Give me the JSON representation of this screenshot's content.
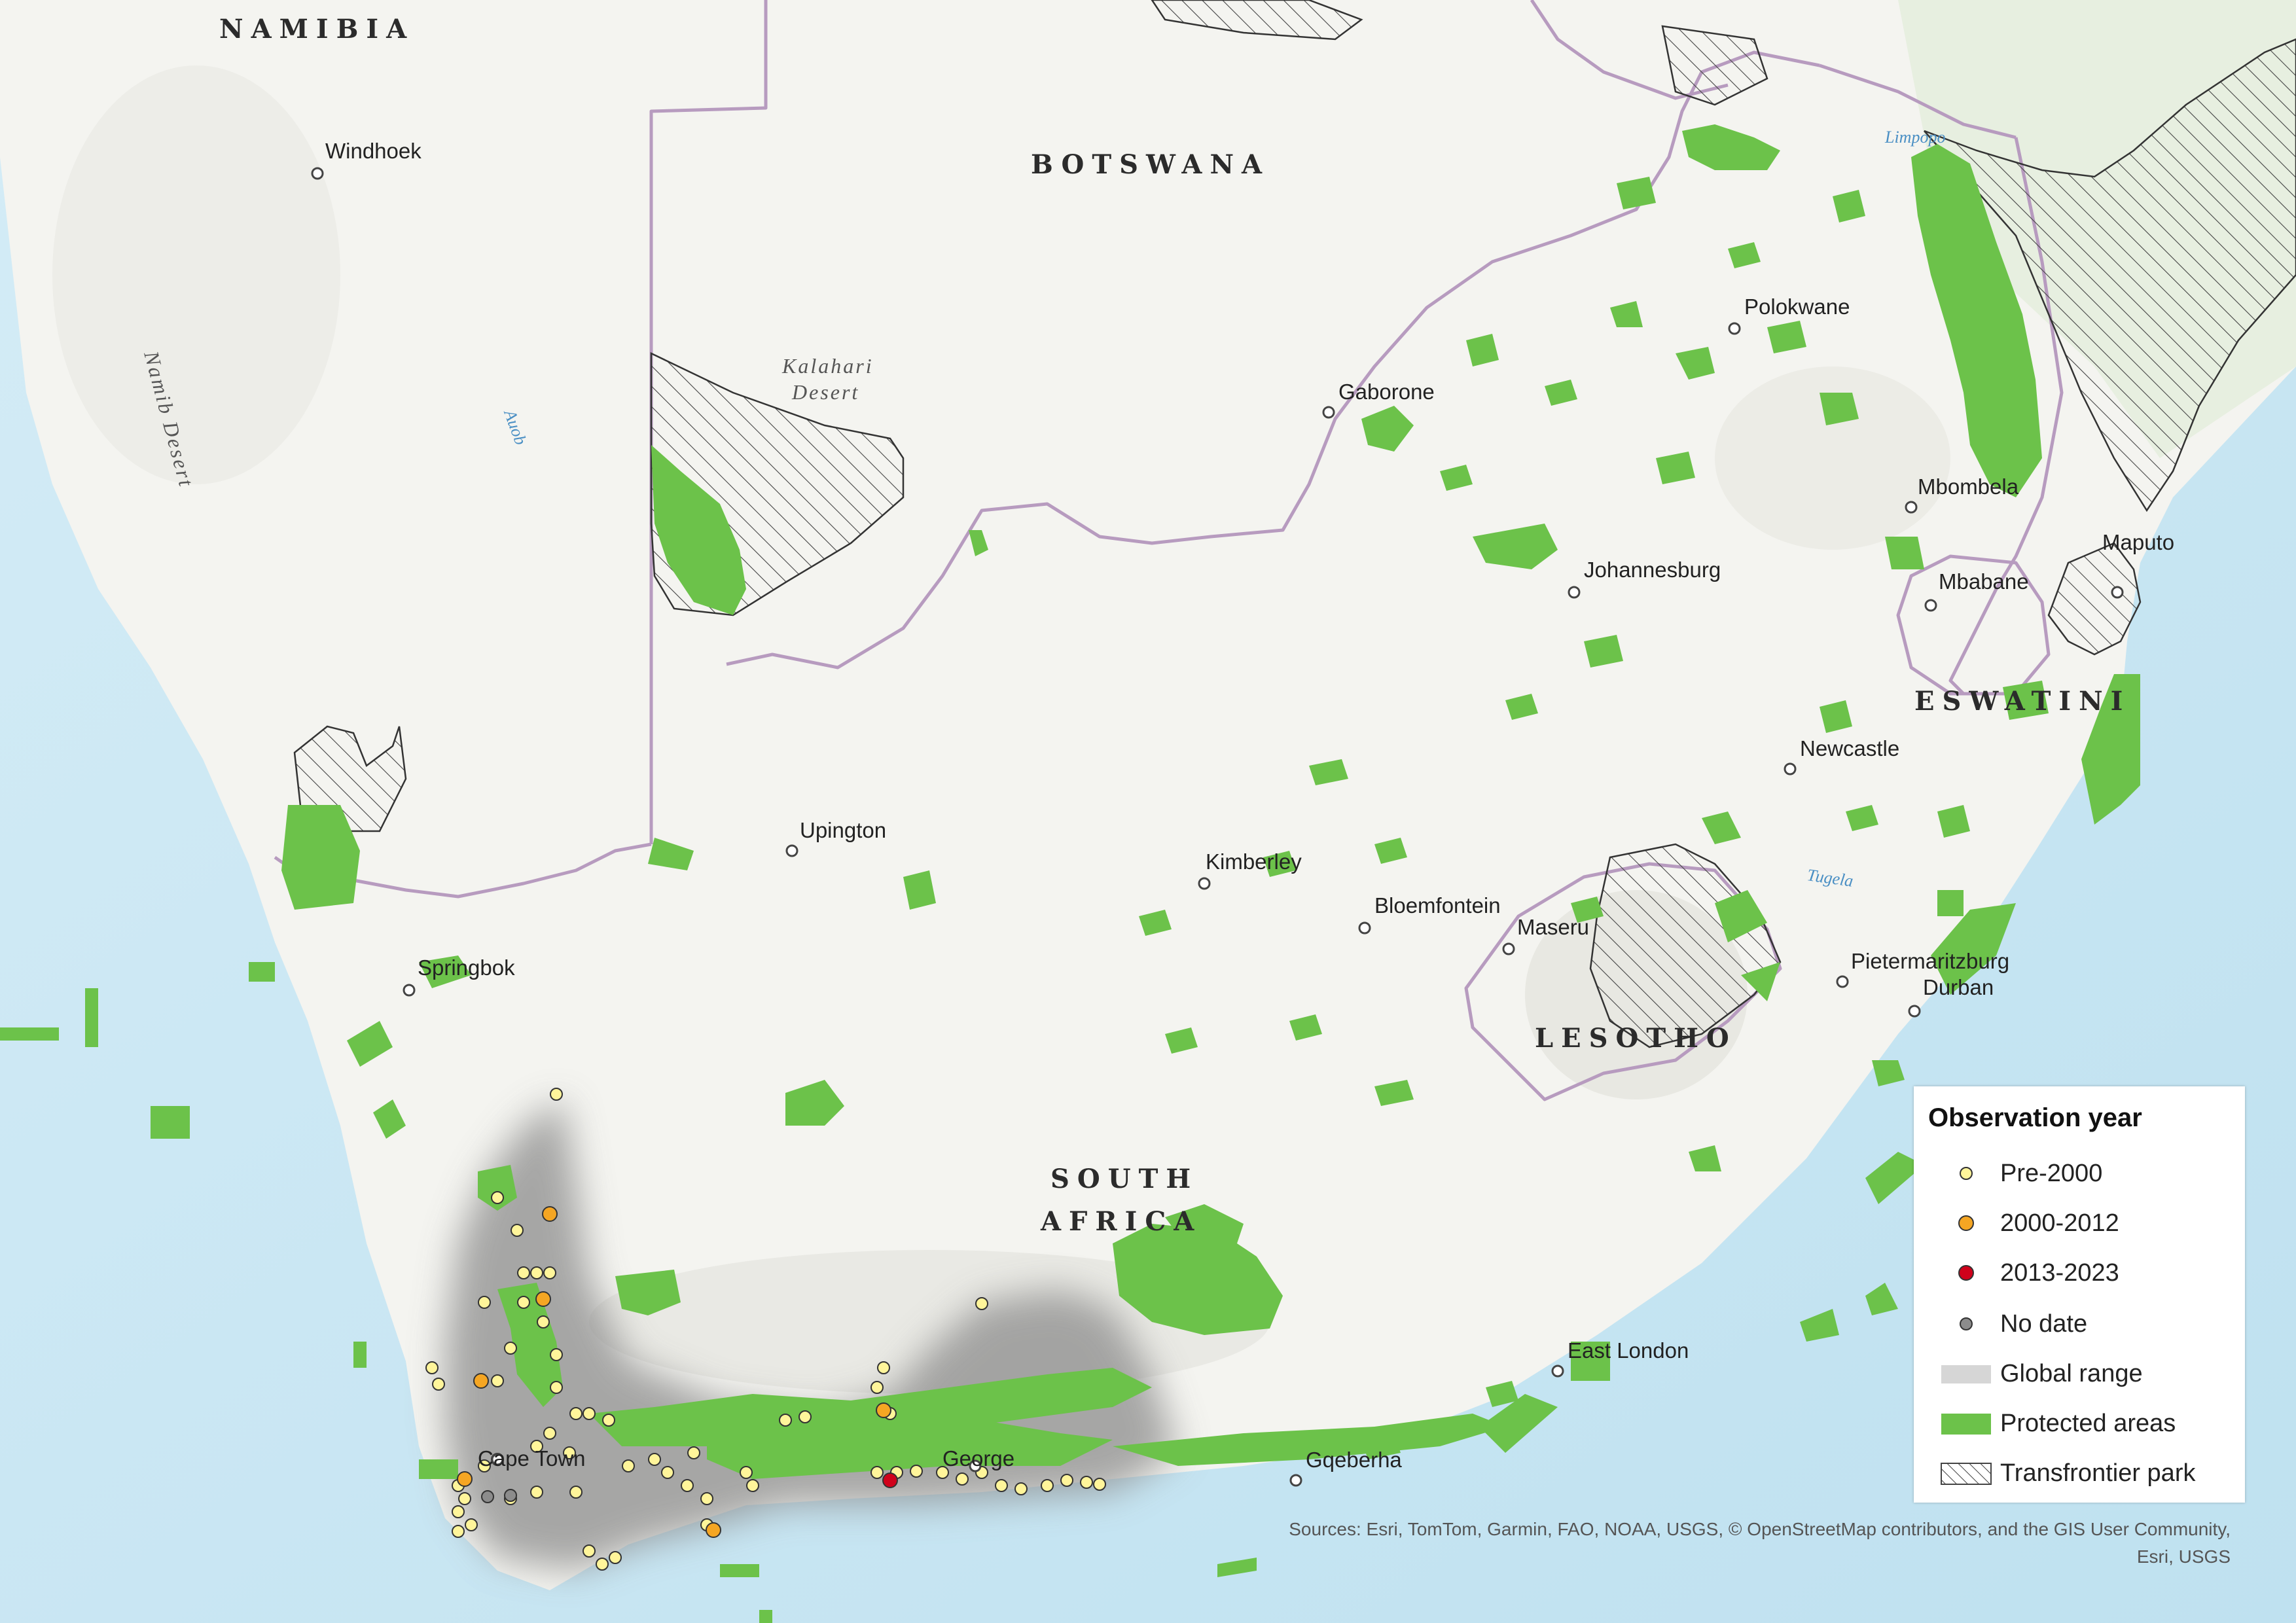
{
  "labels": {
    "countries": {
      "namibia": "NAMIBIA",
      "botswana": "BOTSWANA",
      "south_africa_1": "SOUTH",
      "south_africa_2": "AFRICA",
      "lesotho": "LESOTHO",
      "eswatini": "ESWATINI"
    },
    "cities": {
      "windhoek": "Windhoek",
      "gaborone": "Gaborone",
      "polokwane": "Polokwane",
      "mbombela": "Mbombela",
      "maputo": "Maputo",
      "mbabane": "Mbabane",
      "johannesburg": "Johannesburg",
      "newcastle": "Newcastle",
      "upington": "Upington",
      "kimberley": "Kimberley",
      "bloemfontein": "Bloemfontein",
      "maseru": "Maseru",
      "pietermaritzburg": "Pietermaritzburg",
      "durban": "Durban",
      "springbok": "Springbok",
      "east_london": "East London",
      "gqeberha": "Gqeberha",
      "george": "George",
      "cape_town": "Cape Town"
    },
    "deserts": {
      "namib": "Namib Desert",
      "kalahari_1": "Kalahari",
      "kalahari_2": "Desert"
    },
    "rivers": {
      "auob": "Auob",
      "limpopo": "Limpopo",
      "tugela": "Tugela"
    }
  },
  "legend": {
    "title": "Observation year",
    "items": {
      "pre2000": {
        "label": "Pre-2000",
        "color": "#fff59a"
      },
      "y2000_2012": {
        "label": "2000-2012",
        "color": "#f5a623"
      },
      "y2013_2023": {
        "label": "2013-2023",
        "color": "#d0021b"
      },
      "no_date": {
        "label": "No date",
        "color": "#8c8c8c"
      },
      "global_range": {
        "label": "Global range",
        "color": "#9a9a9a"
      },
      "protected": {
        "label": "Protected areas",
        "color": "#6cc24a"
      },
      "transfrontier": {
        "label": "Transfrontier park"
      }
    }
  },
  "sources": {
    "line1": "Sources: Esri, TomTom, Garmin, FAO, NOAA, USGS, © OpenStreetMap contributors, and the GIS User Community,",
    "line2": "Esri, USGS"
  },
  "colors": {
    "ocean": "#c9e6f2",
    "land": "#f3f3ef",
    "border": "#b79bbf"
  }
}
